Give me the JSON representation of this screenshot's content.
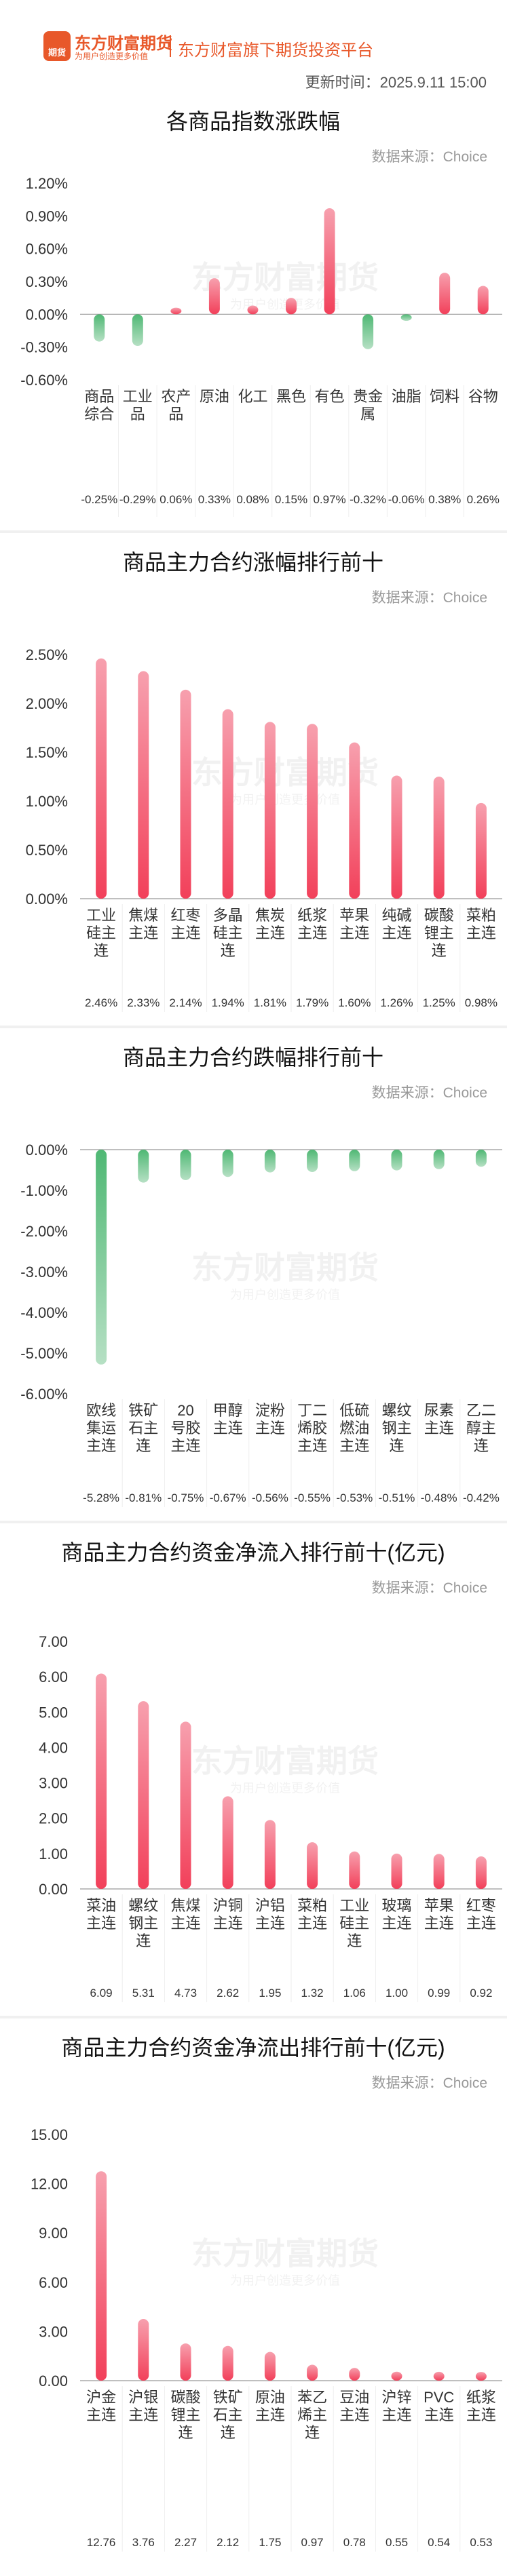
{
  "header": {
    "logo_text": "东方财富期货",
    "logo_badge": "期货",
    "logo_slogan": "为用户创造更多价值",
    "platform": "东方财富旗下期货投资平台",
    "update_time": "更新时间：2025.9.11 15:00"
  },
  "colors": {
    "up": "#f2405a",
    "down": "#4fb874",
    "brand": "#e8582a"
  },
  "watermark": {
    "main": "东方财富期货",
    "sub": "为用户创造更多价值"
  },
  "chart_data": [
    {
      "type": "bar",
      "title": "各商品指数涨跌幅",
      "source": "数据来源：Choice",
      "categories": [
        "商品综合",
        "工业品",
        "农产品",
        "原油",
        "化工",
        "黑色",
        "有色",
        "贵金属",
        "油脂",
        "饲料",
        "谷物"
      ],
      "values": [
        -0.25,
        -0.29,
        0.06,
        0.33,
        0.08,
        0.15,
        0.97,
        -0.32,
        -0.06,
        0.38,
        0.26
      ],
      "value_labels": [
        "-0.25%",
        "-0.29%",
        "0.06%",
        "0.33%",
        "0.08%",
        "0.15%",
        "0.97%",
        "-0.32%",
        "-0.06%",
        "0.38%",
        "0.26%"
      ],
      "yticks": [
        "1.20%",
        "0.90%",
        "0.60%",
        "0.30%",
        "0.00%",
        "-0.30%",
        "-0.60%"
      ],
      "ylim": [
        -0.6,
        1.2
      ],
      "ystep": 0.3,
      "grid": false
    },
    {
      "type": "bar",
      "title": "商品主力合约涨幅排行前十",
      "source": "数据来源：Choice",
      "categories": [
        "工业硅主连",
        "焦煤主连",
        "红枣主连",
        "多晶硅主连",
        "焦炭主连",
        "纸浆主连",
        "苹果主连",
        "纯碱主连",
        "碳酸锂主连",
        "菜粕主连"
      ],
      "values": [
        2.46,
        2.33,
        2.14,
        1.94,
        1.81,
        1.79,
        1.6,
        1.26,
        1.25,
        0.98
      ],
      "value_labels": [
        "2.46%",
        "2.33%",
        "2.14%",
        "1.94%",
        "1.81%",
        "1.79%",
        "1.60%",
        "1.26%",
        "1.25%",
        "0.98%"
      ],
      "yticks": [
        "2.50%",
        "2.00%",
        "1.50%",
        "1.00%",
        "0.50%",
        "0.00%"
      ],
      "ylim": [
        0,
        2.5
      ],
      "ystep": 0.5,
      "grid": false
    },
    {
      "type": "bar",
      "title": "商品主力合约跌幅排行前十",
      "source": "数据来源：Choice",
      "categories": [
        "欧线集运主连",
        "铁矿石主连",
        "20号胶主连",
        "甲醇主连",
        "淀粉主连",
        "丁二烯胶主连",
        "低硫燃油主连",
        "螺纹钢主连",
        "尿素主连",
        "乙二醇主连"
      ],
      "values": [
        -5.28,
        -0.81,
        -0.75,
        -0.67,
        -0.56,
        -0.55,
        -0.53,
        -0.51,
        -0.48,
        -0.42
      ],
      "value_labels": [
        "-5.28%",
        "-0.81%",
        "-0.75%",
        "-0.67%",
        "-0.56%",
        "-0.55%",
        "-0.53%",
        "-0.51%",
        "-0.48%",
        "-0.42%"
      ],
      "yticks": [
        "0.00%",
        "-1.00%",
        "-2.00%",
        "-3.00%",
        "-4.00%",
        "-5.00%",
        "-6.00%"
      ],
      "ylim": [
        -6,
        0
      ],
      "ystep": 1,
      "grid": false
    },
    {
      "type": "bar",
      "title": "商品主力合约资金净流入排行前十(亿元)",
      "source": "数据来源：Choice",
      "categories": [
        "菜油主连",
        "螺纹钢主连",
        "焦煤主连",
        "沪铜主连",
        "沪铝主连",
        "菜粕主连",
        "工业硅主连",
        "玻璃主连",
        "苹果主连",
        "红枣主连"
      ],
      "values": [
        6.09,
        5.31,
        4.73,
        2.62,
        1.95,
        1.32,
        1.06,
        1.0,
        0.99,
        0.92
      ],
      "value_labels": [
        "6.09",
        "5.31",
        "4.73",
        "2.62",
        "1.95",
        "1.32",
        "1.06",
        "1.00",
        "0.99",
        "0.92"
      ],
      "yticks": [
        "7.00",
        "6.00",
        "5.00",
        "4.00",
        "3.00",
        "2.00",
        "1.00",
        "0.00"
      ],
      "ylim": [
        0,
        7
      ],
      "ystep": 1,
      "grid": false
    },
    {
      "type": "bar",
      "title": "商品主力合约资金净流出排行前十(亿元)",
      "source": "数据来源：Choice",
      "categories": [
        "沪金主连",
        "沪银主连",
        "碳酸锂主连",
        "铁矿石主连",
        "原油主连",
        "苯乙烯主连",
        "豆油主连",
        "沪锌主连",
        "PVC主连",
        "纸浆主连"
      ],
      "values": [
        12.76,
        3.76,
        2.27,
        2.12,
        1.75,
        0.97,
        0.78,
        0.55,
        0.54,
        0.53
      ],
      "value_labels": [
        "12.76",
        "3.76",
        "2.27",
        "2.12",
        "1.75",
        "0.97",
        "0.78",
        "0.55",
        "0.54",
        "0.53"
      ],
      "yticks": [
        "15.00",
        "12.00",
        "9.00",
        "6.00",
        "3.00",
        "0.00"
      ],
      "ylim": [
        0,
        15
      ],
      "ystep": 3,
      "grid": false,
      "direction": "down"
    }
  ]
}
